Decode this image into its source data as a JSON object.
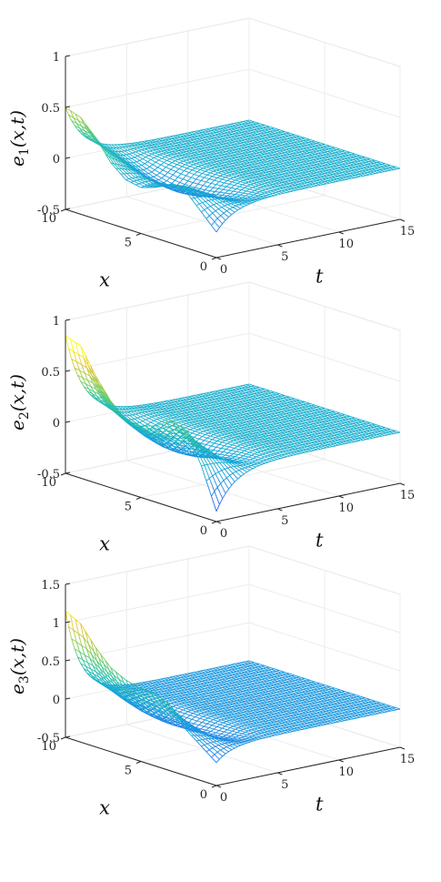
{
  "chart_data": [
    {
      "type": "surface-mesh",
      "zlabel": "e_1(x,t)",
      "xlabel": "x",
      "tlabel": "t",
      "t_range": [
        0,
        15
      ],
      "x_range": [
        0,
        10
      ],
      "z_range": [
        -0.5,
        1
      ],
      "t_ticks": [
        "0",
        "5",
        "10",
        "15"
      ],
      "x_ticks": [
        "0",
        "5",
        "10"
      ],
      "z_ticks": [
        "-0.5",
        "0",
        "0.5",
        "1"
      ],
      "surface": {
        "profile_at_t0": {
          "x": [
            0,
            1,
            2,
            3,
            4,
            5,
            6,
            7,
            8,
            9,
            10
          ],
          "z": [
            -0.25,
            -0.1,
            0.05,
            0.08,
            0.0,
            -0.05,
            -0.02,
            0.1,
            0.3,
            0.45,
            0.5
          ]
        },
        "decays_to_zero_by_t": 6
      },
      "grid": true,
      "colormap": "parula"
    },
    {
      "type": "surface-mesh",
      "zlabel": "e_2(x,t)",
      "xlabel": "x",
      "tlabel": "t",
      "t_range": [
        0,
        15
      ],
      "x_range": [
        0,
        10
      ],
      "z_range": [
        -0.5,
        1
      ],
      "t_ticks": [
        "0",
        "5",
        "10",
        "15"
      ],
      "x_ticks": [
        "0",
        "5",
        "10"
      ],
      "z_ticks": [
        "-0.5",
        "0",
        "0.5",
        "1"
      ],
      "surface": {
        "profile_at_t0": {
          "x": [
            0,
            1,
            2,
            3,
            4,
            5,
            6,
            7,
            8,
            9,
            10
          ],
          "z": [
            -0.4,
            0.0,
            0.3,
            0.35,
            0.25,
            0.2,
            0.22,
            0.35,
            0.55,
            0.8,
            0.85
          ]
        },
        "decays_to_zero_by_t": 6
      },
      "grid": true,
      "colormap": "parula"
    },
    {
      "type": "surface-mesh",
      "zlabel": "e_3(x,t)",
      "xlabel": "x",
      "tlabel": "t",
      "t_range": [
        0,
        15
      ],
      "x_range": [
        0,
        10
      ],
      "z_range": [
        -0.5,
        1.5
      ],
      "t_ticks": [
        "0",
        "5",
        "10",
        "15"
      ],
      "x_ticks": [
        "0",
        "5",
        "10"
      ],
      "z_ticks": [
        "-0.5",
        "0",
        "0.5",
        "1",
        "1.5"
      ],
      "surface": {
        "profile_at_t0": {
          "x": [
            0,
            1,
            2,
            3,
            4,
            5,
            6,
            7,
            8,
            9,
            10
          ],
          "z": [
            -0.2,
            -0.05,
            0.1,
            0.35,
            0.45,
            0.45,
            0.5,
            0.6,
            0.8,
            1.05,
            1.15
          ]
        },
        "decays_to_zero_by_t": 5
      },
      "grid": true,
      "colormap": "parula"
    }
  ]
}
